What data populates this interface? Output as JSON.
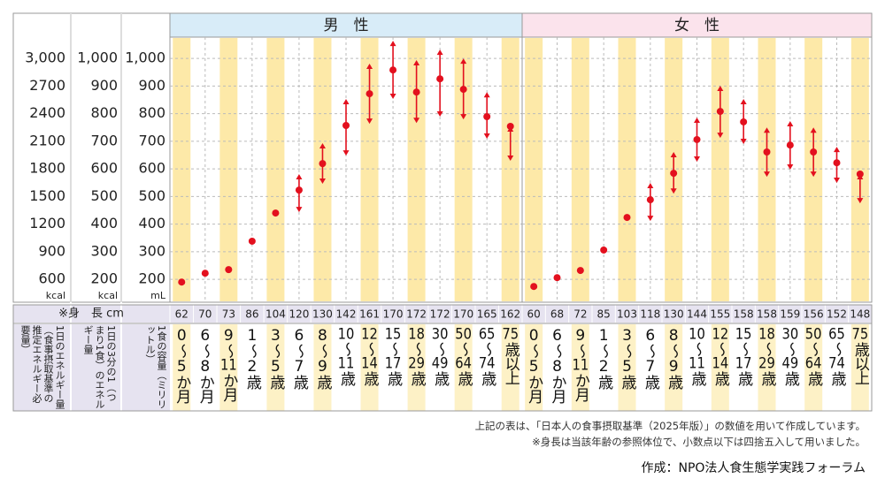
{
  "chart_data": {
    "type": "range",
    "marker_color": "#e3101e",
    "axes": [
      {
        "unit": "kcal",
        "lim": [
          351,
          3231
        ],
        "ticks": [
          600,
          900,
          1200,
          1500,
          1800,
          2100,
          2400,
          2700,
          {
            "value": 3000,
            "label": "3,000"
          }
        ]
      },
      {
        "unit": "kcal",
        "lim": [
          117,
          1077
        ],
        "ticks": [
          200,
          300,
          400,
          500,
          600,
          700,
          800,
          900,
          {
            "value": 1000,
            "label": "1,000"
          }
        ]
      },
      {
        "unit": "mL",
        "lim": [
          117,
          1077
        ],
        "ticks": [
          200,
          300,
          400,
          500,
          600,
          700,
          800,
          900,
          {
            "value": 1000,
            "label": "1,000"
          }
        ]
      }
    ],
    "value_axis": 1,
    "grid": true,
    "height_label": "※身　長 cm",
    "row_labels": [
      "1日のエネルギー量（食事摂取基準の推定エネルギー必要量）",
      "1日の3分の1（つまり1食）のエネルギー量",
      "1食の容量（ミリリットル）"
    ],
    "panels": [
      {
        "title": "男　性",
        "color": "#d8ecf8",
        "categories": [
          "0～5か月",
          "6～8か月",
          "9～11か月",
          "1～2歳",
          "3～5歳",
          "6～7歳",
          "8～9歳",
          "10～11歳",
          "12～14歳",
          "15～17歳",
          "18～29歳",
          "30～49歳",
          "50～64歳",
          "65～74歳",
          "75歳以上"
        ],
        "heights": [
          62,
          70,
          73,
          86,
          104,
          120,
          130,
          142,
          161,
          170,
          172,
          172,
          170,
          165,
          162
        ],
        "values": [
          190,
          222,
          235,
          338,
          440,
          523,
          619,
          757,
          872,
          958,
          878,
          926,
          888,
          789,
          754
        ],
        "high": [
          null,
          null,
          null,
          null,
          null,
          581,
          693,
          853,
          981,
          1064,
          994,
          1032,
          1000,
          878,
          754
        ],
        "low": [
          null,
          null,
          null,
          null,
          null,
          443,
          546,
          648,
          763,
          853,
          766,
          789,
          779,
          709,
          629
        ]
      },
      {
        "title": "女　性",
        "color": "#fbe3ec",
        "categories": [
          "0～5か月",
          "6～8か月",
          "9～11か月",
          "1～2歳",
          "3～5歳",
          "6～7歳",
          "8～9歳",
          "10～11歳",
          "12～14歳",
          "15～17歳",
          "18～29歳",
          "30～49歳",
          "50～64歳",
          "65～74歳",
          "75歳以上"
        ],
        "heights": [
          60,
          68,
          72,
          85,
          103,
          118,
          130,
          144,
          155,
          158,
          158,
          159,
          156,
          152,
          148
        ],
        "values": [
          174,
          206,
          232,
          306,
          424,
          488,
          584,
          706,
          808,
          770,
          661,
          686,
          661,
          622,
          581
        ],
        "high": [
          null,
          null,
          null,
          null,
          null,
          549,
          661,
          786,
          901,
          853,
          750,
          773,
          750,
          680,
          581
        ],
        "low": [
          null,
          null,
          null,
          null,
          null,
          411,
          510,
          626,
          712,
          690,
          571,
          597,
          571,
          549,
          475
        ]
      }
    ],
    "notes": [
      "上記の表は、「日本人の食事摂取基準（2025年版）」の数値を用いて作成しています。",
      "※身長は当該年齢の参照体位で、小数点以下は四捨五入して用いました。"
    ],
    "credit": "作成：NPO法人食生態学実践フォーラム"
  }
}
